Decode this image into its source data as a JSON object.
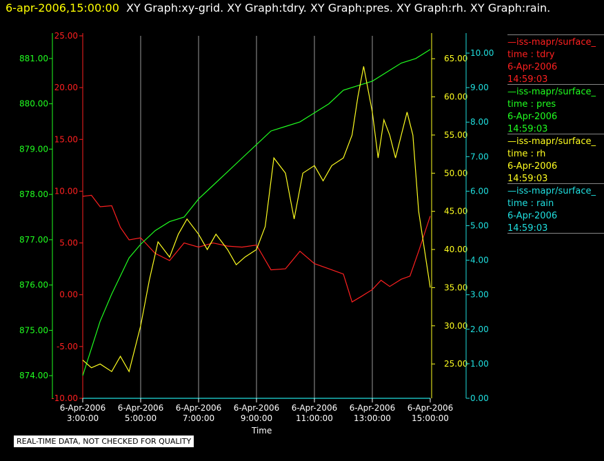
{
  "header": {
    "timestamp": "6-apr-2006,15:00:00",
    "graphs": "XY Graph:xy-grid.  XY Graph:tdry.  XY Graph:pres.  XY Graph:rh.  XY Graph:rain."
  },
  "note": "REAL-TIME DATA, NOT CHECKED FOR QUALITY",
  "legend": [
    {
      "source": "—iss-mapr/surface_",
      "var": "time : tdry",
      "date": "6-Apr-2006",
      "time": "14:59:03",
      "color": "#ff2020"
    },
    {
      "source": "—iss-mapr/surface_",
      "var": "time : pres",
      "date": "6-Apr-2006",
      "time": "14:59:03",
      "color": "#20ff20"
    },
    {
      "source": "—iss-mapr/surface_",
      "var": "time : rh",
      "date": "6-Apr-2006",
      "time": "14:59:03",
      "color": "#ffff20"
    },
    {
      "source": "—iss-mapr/surface_",
      "var": "time : rain",
      "date": "6-Apr-2006",
      "time": "14:59:03",
      "color": "#20e0e0"
    }
  ],
  "chart_data": {
    "type": "line",
    "xlabel": "Time",
    "x_ticks": [
      {
        "date": "6-Apr-2006",
        "time": "3:00:00"
      },
      {
        "date": "6-Apr-2006",
        "time": "5:00:00"
      },
      {
        "date": "6-Apr-2006",
        "time": "7:00:00"
      },
      {
        "date": "6-Apr-2006",
        "time": "9:00:00"
      },
      {
        "date": "6-Apr-2006",
        "time": "11:00:00"
      },
      {
        "date": "6-Apr-2006",
        "time": "13:00:00"
      },
      {
        "date": "6-Apr-2006",
        "time": "15:00:00"
      }
    ],
    "xlim_hours": [
      3,
      15
    ],
    "grid": "vertical",
    "axes": {
      "tdry": {
        "ylim": [
          -10,
          25
        ],
        "ticks": [
          "25.00",
          "20.00",
          "15.00",
          "10.00",
          "5.00",
          "0.00",
          "-5.00",
          "-10.00"
        ],
        "color": "#ff2020"
      },
      "pres": {
        "ylim": [
          873.5,
          881.5
        ],
        "ticks": [
          "881.00",
          "880.00",
          "879.00",
          "878.00",
          "877.00",
          "876.00",
          "875.00",
          "874.00"
        ],
        "color": "#20ff20"
      },
      "rh": {
        "ylim": [
          20.5,
          68
        ],
        "ticks": [
          "65.00",
          "60.00",
          "55.00",
          "50.00",
          "45.00",
          "40.00",
          "35.00",
          "30.00",
          "25.00"
        ],
        "color": "#ffff20"
      },
      "rain": {
        "ylim": [
          0,
          10.5
        ],
        "ticks": [
          "10.00",
          "9.00",
          "8.00",
          "7.00",
          "6.00",
          "5.00",
          "4.00",
          "3.00",
          "2.00",
          "1.00",
          "0.00"
        ],
        "color": "#20e0e0"
      }
    },
    "series": [
      {
        "name": "tdry",
        "axis": "tdry",
        "x": [
          3.0,
          3.3,
          3.6,
          4.0,
          4.3,
          4.6,
          5.0,
          5.5,
          6.0,
          6.5,
          7.0,
          7.5,
          8.0,
          8.5,
          9.0,
          9.5,
          10.0,
          10.5,
          11.0,
          11.5,
          12.0,
          12.3,
          12.6,
          13.0,
          13.3,
          13.6,
          14.0,
          14.3,
          14.6,
          15.0
        ],
        "y": [
          9.5,
          9.6,
          8.5,
          8.6,
          6.5,
          5.3,
          5.5,
          4.0,
          3.3,
          5.0,
          4.6,
          5.0,
          4.7,
          4.6,
          4.8,
          2.4,
          2.5,
          4.2,
          3.0,
          2.5,
          2.0,
          -0.7,
          -0.2,
          0.5,
          1.4,
          0.8,
          1.5,
          1.8,
          4.2,
          7.6
        ]
      },
      {
        "name": "pres",
        "axis": "pres",
        "x": [
          3.0,
          3.3,
          3.6,
          4.0,
          4.3,
          4.6,
          5.0,
          5.5,
          6.0,
          6.5,
          7.0,
          7.5,
          8.0,
          8.5,
          9.0,
          9.5,
          10.0,
          10.5,
          11.0,
          11.5,
          12.0,
          12.5,
          13.0,
          13.5,
          14.0,
          14.5,
          15.0
        ],
        "y": [
          874.0,
          874.6,
          875.2,
          875.8,
          876.2,
          876.6,
          876.9,
          877.2,
          877.4,
          877.5,
          877.9,
          878.2,
          878.5,
          878.8,
          879.1,
          879.4,
          879.5,
          879.6,
          879.8,
          880.0,
          880.3,
          880.4,
          880.5,
          880.7,
          880.9,
          881.0,
          881.2
        ]
      },
      {
        "name": "rh",
        "axis": "rh",
        "x": [
          3.0,
          3.3,
          3.6,
          4.0,
          4.3,
          4.6,
          5.0,
          5.3,
          5.6,
          6.0,
          6.3,
          6.6,
          7.0,
          7.3,
          7.6,
          8.0,
          8.3,
          8.6,
          9.0,
          9.3,
          9.6,
          10.0,
          10.3,
          10.6,
          11.0,
          11.3,
          11.6,
          12.0,
          12.3,
          12.5,
          12.7,
          13.0,
          13.2,
          13.4,
          13.6,
          13.8,
          14.0,
          14.2,
          14.4,
          14.6,
          14.8,
          15.0
        ],
        "y": [
          25.5,
          24.5,
          25.0,
          24.0,
          26.0,
          24.0,
          30.0,
          36.0,
          41.0,
          39.0,
          42.0,
          44.0,
          42.0,
          40.0,
          42.0,
          40.0,
          38.0,
          39.0,
          40.0,
          43.0,
          52.0,
          50.0,
          44.0,
          50.0,
          51.0,
          49.0,
          51.0,
          52.0,
          55.0,
          60.0,
          64.0,
          58.0,
          52.0,
          57.0,
          55.0,
          52.0,
          55.0,
          58.0,
          55.0,
          45.0,
          40.0,
          35.0
        ]
      },
      {
        "name": "rain",
        "axis": "rain",
        "x": [
          3.0,
          15.0
        ],
        "y": [
          0.0,
          0.0
        ]
      }
    ]
  }
}
